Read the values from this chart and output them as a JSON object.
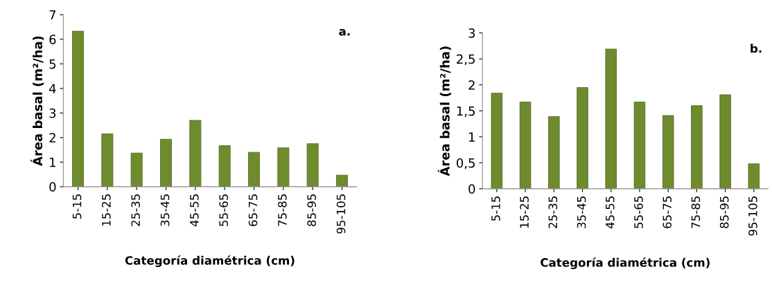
{
  "chart_data": [
    {
      "type": "bar",
      "categories": [
        "5-15",
        "15-25",
        "25-35",
        "35-45",
        "45-55",
        "55-65",
        "65-75",
        "75-85",
        "85-95",
        "95-105"
      ],
      "values": [
        6.33,
        2.15,
        1.37,
        1.93,
        2.7,
        1.67,
        1.4,
        1.58,
        1.75,
        0.47
      ],
      "color": "#6e8b2e",
      "xlabel": "Categoría diamétrica (cm)",
      "ylabel": "Área basal (m²/ha)",
      "ylim": [
        0,
        7
      ],
      "yticks": [
        0,
        1,
        2,
        3,
        4,
        5,
        6,
        7
      ],
      "grid": false,
      "annotations": [
        "a."
      ]
    },
    {
      "type": "bar",
      "categories": [
        "5-15",
        "15-25",
        "25-35",
        "35-45",
        "45-55",
        "55-65",
        "65-75",
        "75-85",
        "85-95",
        "95-105"
      ],
      "values": [
        1.84,
        1.67,
        1.39,
        1.95,
        2.69,
        1.67,
        1.41,
        1.6,
        1.81,
        0.48
      ],
      "color": "#6e8b2e",
      "xlabel": "Categoría diamétrica (cm)",
      "ylabel": "Área basal (m²/ha)",
      "ylim": [
        0,
        3
      ],
      "yticks": [
        0,
        {
          "value": 0.5,
          "label": "0,5"
        },
        1,
        {
          "value": 1.5,
          "label": "1,5"
        },
        2,
        {
          "value": 2.5,
          "label": "2,5"
        },
        3
      ],
      "grid": false,
      "annotations": [
        "b."
      ]
    }
  ]
}
